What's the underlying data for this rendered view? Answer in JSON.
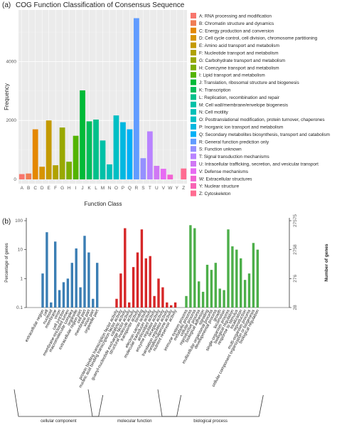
{
  "chart_data": [
    {
      "type": "bar",
      "panel_label": "(a)",
      "title": "COG Function Classification of Consensus Sequence",
      "xlabel": "Function Class",
      "ylabel": "Frequency",
      "ylim": [
        0,
        5700
      ],
      "yticks": [
        "0",
        "2000",
        "4000"
      ],
      "categories": [
        "A",
        "B",
        "C",
        "D",
        "E",
        "F",
        "G",
        "H",
        "I",
        "J",
        "K",
        "L",
        "M",
        "N",
        "O",
        "P",
        "Q",
        "R",
        "S",
        "T",
        "U",
        "V",
        "W",
        "Y",
        "Z"
      ],
      "values": [
        180,
        200,
        1700,
        430,
        2000,
        480,
        1760,
        600,
        1480,
        3020,
        1970,
        2030,
        1320,
        510,
        2170,
        1940,
        1700,
        5470,
        720,
        1630,
        460,
        360,
        160,
        0,
        370
      ],
      "colors": [
        "#f8766d",
        "#f07d55",
        "#e48800",
        "#d79400",
        "#c49a00",
        "#b0a200",
        "#99a800",
        "#7cae00",
        "#53b400",
        "#00ba38",
        "#00bd5c",
        "#00c08b",
        "#00c1a7",
        "#00c0b8",
        "#00bfc4",
        "#00b8e0",
        "#00b0f6",
        "#619cff",
        "#9590ff",
        "#b983ff",
        "#d078f4",
        "#e76bf3",
        "#f263d3",
        "#f862b5",
        "#ff6c91"
      ],
      "grid": true,
      "legend_position": "right",
      "legend": [
        "A: RNA processing and modification",
        "B: Chromatin structure and dynamics",
        "C: Energy production and conversion",
        "D: Cell cycle control, cell division, chromosome partitioning",
        "E: Amino acid transport and metabolism",
        "F: Nucleotide transport and metabolism",
        "G: Carbohydrate transport and metabolism",
        "H: Coenzyme transport and metabolism",
        "I: Lipid transport and metabolism",
        "J: Translation, ribosomal structure and biogenesis",
        "K: Transcription",
        "L: Replication, recombination and repair",
        "M: Cell wall/membrane/envelope biogenesis",
        "N: Cell motility",
        "O: Posttranslational modification, protein turnover, chaperones",
        "P: Inorganic ion transport and metabolism",
        "Q: Secondary metabolites biosynthesis, transport and catabolism",
        "R: General function prediction only",
        "S: Function unknown",
        "T: Signal transduction mechanisms",
        "U: Intracellular trafficking, secretion, and vesicular transport",
        "V: Defense mechanisms",
        "W: Extracellular structures",
        "Y: Nuclear structure",
        "Z: Cytoskeleton"
      ]
    },
    {
      "type": "bar",
      "panel_label": "(b)",
      "scale": "log",
      "ylabel": "Percentage of genes",
      "ylabel_right": "Number of genes",
      "yticks_left": [
        "0.1",
        "1",
        "10",
        "100"
      ],
      "yticks_right": [
        "28",
        "276",
        "2758",
        "27575"
      ],
      "groups": [
        {
          "name": "cellular component",
          "color": "#3b7eb4",
          "categories": [
            "extracellular region",
            "cell",
            "nucleoid",
            "membrane",
            "virion",
            "cell junction",
            "membrane-enclosed lumen",
            "macromolecular complex",
            "organelle",
            "extracellular region part",
            "cell part",
            "membrane part",
            "virion part",
            "organelle part"
          ],
          "values": [
            1.5,
            40,
            0.15,
            19,
            0.4,
            0.75,
            1.0,
            3.5,
            11,
            0.5,
            30,
            8,
            0.2,
            3.5
          ]
        },
        {
          "name": "molecular function",
          "color": "#d62728",
          "categories": [
            "protein binding transcription factor activity",
            "nucleic acid binding transcription factor activity",
            "catalytic activity",
            "guanyl-nucleotide exchange factor activity",
            "structural molecule activity",
            "transporter activity",
            "binding",
            "electron carrier activity",
            "molecular transducer activity",
            "antioxidant activity",
            "enzyme regulator activity",
            "receptor activity",
            "translation regulator activity",
            "metallochaperone activity",
            "nutrient reservoir activity"
          ],
          "values": [
            0.2,
            1.5,
            55,
            0.15,
            2.5,
            8,
            50,
            5,
            6,
            0.25,
            1.0,
            0.5,
            0.15,
            0.12,
            0.15
          ]
        },
        {
          "name": "biological process",
          "color": "#4daf4a",
          "categories": [
            "immune system process",
            "metabolic process",
            "cellular process",
            "reproductive process",
            "biological adhesion",
            "signaling",
            "multicellular organismal process",
            "developmental process",
            "growth",
            "locomotion",
            "single-organism process",
            "biological regulation",
            "response to stimulus",
            "localization",
            "reproduction",
            "multi-organism process",
            "cellular component organization or biogenesis",
            "biological regulation"
          ],
          "values": [
            0.25,
            70,
            55,
            0.8,
            0.35,
            3,
            2,
            3.5,
            0.45,
            0.4,
            50,
            13,
            10,
            5,
            0.9,
            1.5,
            17,
            10
          ]
        }
      ]
    }
  ]
}
